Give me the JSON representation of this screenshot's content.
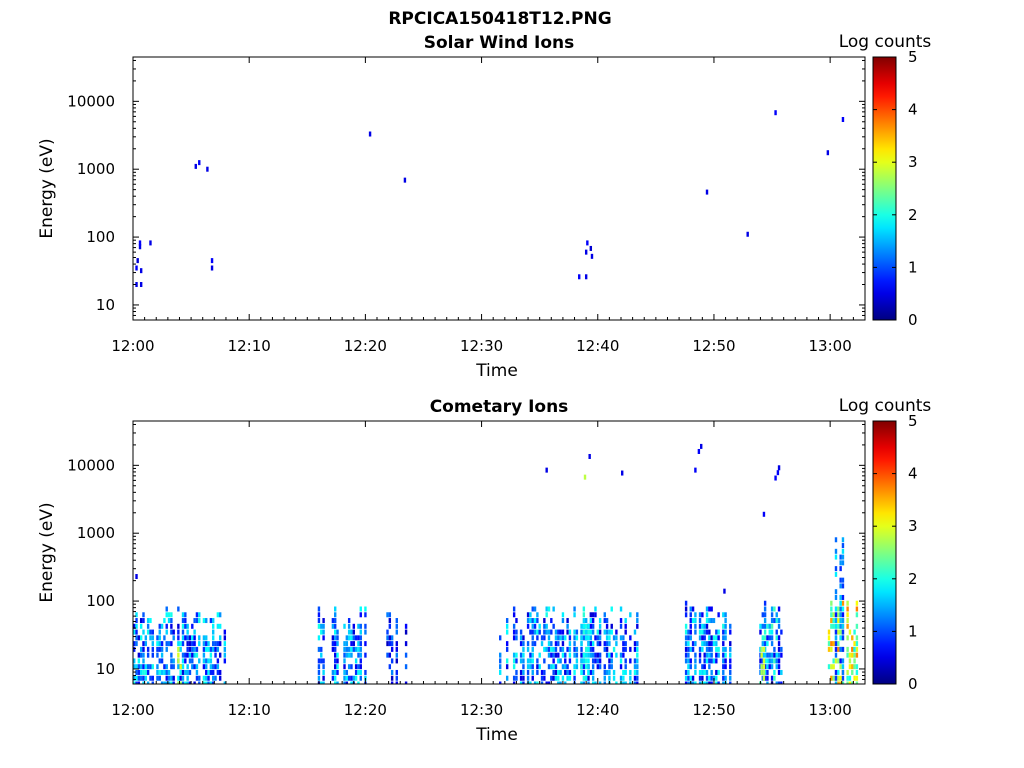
{
  "figure": {
    "title": "RPCICA150418T12.PNG"
  },
  "colors": {
    "axis": "#000000",
    "colormap": "jet"
  },
  "chart_data": [
    {
      "type": "heatmap",
      "title": "Solar Wind Ions",
      "xlabel": "Time",
      "ylabel": "Energy (eV)",
      "x_ticks": [
        "12:00",
        "12:10",
        "12:20",
        "12:30",
        "12:40",
        "12:50",
        "13:00"
      ],
      "y_ticks": [
        "10",
        "100",
        "1000",
        "10000"
      ],
      "y_scale": "log",
      "ylim": [
        6,
        45000
      ],
      "x_range_minutes": [
        0,
        63
      ],
      "colorbar": {
        "label": "Log counts",
        "ticks": [
          "0",
          "1",
          "2",
          "3",
          "4",
          "5"
        ],
        "range": [
          0,
          5
        ]
      },
      "cells": [
        {
          "t": 0.2,
          "e": 20,
          "v": 0.5
        },
        {
          "t": 0.6,
          "e": 20,
          "v": 0.5
        },
        {
          "t": 0.2,
          "e": 35,
          "v": 0.6
        },
        {
          "t": 0.6,
          "e": 32,
          "v": 0.5
        },
        {
          "t": 0.3,
          "e": 45,
          "v": 0.4
        },
        {
          "t": 0.5,
          "e": 72,
          "v": 0.5
        },
        {
          "t": 0.5,
          "e": 82,
          "v": 0.6
        },
        {
          "t": 1.4,
          "e": 82,
          "v": 0.5
        },
        {
          "t": 5.3,
          "e": 1100,
          "v": 0.5
        },
        {
          "t": 5.6,
          "e": 1250,
          "v": 0.6
        },
        {
          "t": 6.3,
          "e": 1000,
          "v": 0.5
        },
        {
          "t": 6.7,
          "e": 35,
          "v": 0.5
        },
        {
          "t": 6.7,
          "e": 45,
          "v": 0.6
        },
        {
          "t": 20.3,
          "e": 3300,
          "v": 0.5
        },
        {
          "t": 23.3,
          "e": 690,
          "v": 0.5
        },
        {
          "t": 38.3,
          "e": 26,
          "v": 0.6
        },
        {
          "t": 38.9,
          "e": 26,
          "v": 0.5
        },
        {
          "t": 38.9,
          "e": 60,
          "v": 0.5
        },
        {
          "t": 39.0,
          "e": 82,
          "v": 0.6
        },
        {
          "t": 39.4,
          "e": 52,
          "v": 0.5
        },
        {
          "t": 39.3,
          "e": 68,
          "v": 0.4
        },
        {
          "t": 49.3,
          "e": 460,
          "v": 0.5
        },
        {
          "t": 52.8,
          "e": 110,
          "v": 0.5
        },
        {
          "t": 55.2,
          "e": 6800,
          "v": 0.6
        },
        {
          "t": 59.7,
          "e": 1750,
          "v": 0.5
        },
        {
          "t": 61.0,
          "e": 5400,
          "v": 0.6
        }
      ]
    },
    {
      "type": "heatmap",
      "title": "Cometary Ions",
      "xlabel": "Time",
      "ylabel": "Energy (eV)",
      "x_ticks": [
        "12:00",
        "12:10",
        "12:20",
        "12:30",
        "12:40",
        "12:50",
        "13:00"
      ],
      "y_ticks": [
        "10",
        "100",
        "1000",
        "10000"
      ],
      "y_scale": "log",
      "ylim": [
        6,
        45000
      ],
      "x_range_minutes": [
        0,
        63
      ],
      "colorbar": {
        "label": "Log counts",
        "ticks": [
          "0",
          "1",
          "2",
          "3",
          "4",
          "5"
        ],
        "range": [
          0,
          5
        ]
      },
      "bands": [
        {
          "t0": 0.0,
          "t1": 8.0,
          "emax": 90,
          "vmin": 0.4,
          "vmax": 2.0
        },
        {
          "t0": 3.8,
          "t1": 4.2,
          "emax": 40,
          "vmin": 2.6,
          "vmax": 3.0
        },
        {
          "t0": 15.5,
          "t1": 20.0,
          "emax": 95,
          "vmin": 0.4,
          "vmax": 2.0
        },
        {
          "t0": 21.8,
          "t1": 23.6,
          "emax": 95,
          "vmin": 0.3,
          "vmax": 1.3
        },
        {
          "t0": 31.5,
          "t1": 43.5,
          "emax": 90,
          "vmin": 0.4,
          "vmax": 2.0
        },
        {
          "t0": 38.5,
          "t1": 39.2,
          "emax": 90,
          "vmin": 1.6,
          "vmax": 2.1
        },
        {
          "t0": 47.5,
          "t1": 51.5,
          "emax": 100,
          "vmin": 0.4,
          "vmax": 2.0
        },
        {
          "t0": 53.5,
          "t1": 56.0,
          "emax": 95,
          "vmin": 0.5,
          "vmax": 2.3
        },
        {
          "t0": 54.0,
          "t1": 54.3,
          "emax": 30,
          "vmin": 2.6,
          "vmax": 3.0
        },
        {
          "t0": 59.8,
          "t1": 62.3,
          "emax": 120,
          "vmin": 1.8,
          "vmax": 3.8
        },
        {
          "t0": 60.4,
          "t1": 61.4,
          "emax": 1400,
          "vmin": 0.6,
          "vmax": 1.8
        }
      ],
      "cells": [
        {
          "t": 0.2,
          "e": 230,
          "v": 0.5
        },
        {
          "t": 35.5,
          "e": 8500,
          "v": 0.5
        },
        {
          "t": 38.8,
          "e": 6700,
          "v": 2.8
        },
        {
          "t": 39.2,
          "e": 13500,
          "v": 0.5
        },
        {
          "t": 42.0,
          "e": 7700,
          "v": 0.5
        },
        {
          "t": 48.3,
          "e": 8500,
          "v": 0.6
        },
        {
          "t": 48.6,
          "e": 16000,
          "v": 0.6
        },
        {
          "t": 48.8,
          "e": 19000,
          "v": 0.5
        },
        {
          "t": 50.8,
          "e": 140,
          "v": 0.5
        },
        {
          "t": 54.2,
          "e": 1900,
          "v": 0.6
        },
        {
          "t": 55.2,
          "e": 6500,
          "v": 0.6
        },
        {
          "t": 55.4,
          "e": 7800,
          "v": 0.6
        },
        {
          "t": 55.5,
          "e": 9200,
          "v": 0.5
        }
      ]
    }
  ]
}
